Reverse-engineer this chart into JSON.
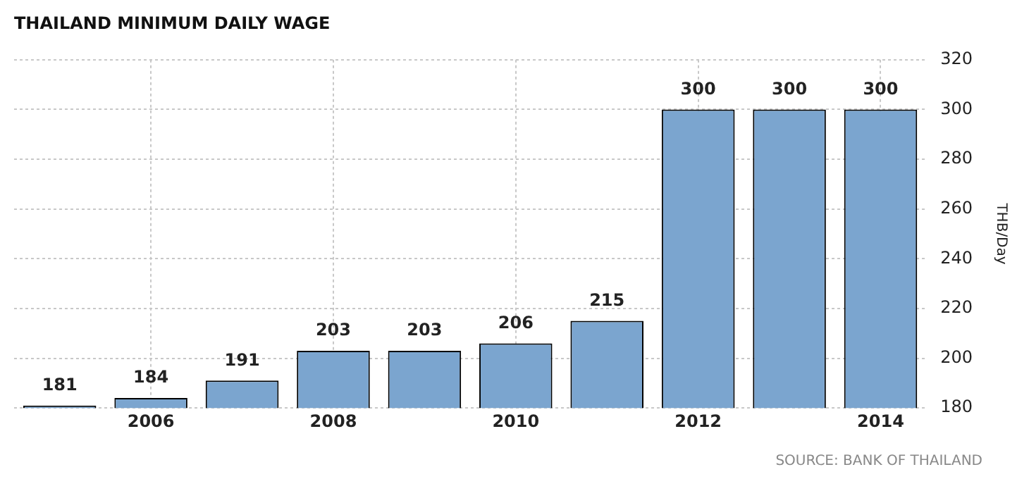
{
  "chart_data": {
    "type": "bar",
    "title": "THAILAND MINIMUM DAILY WAGE",
    "ylabel": "THB/Day",
    "categories": [
      null,
      "2006",
      null,
      "2008",
      null,
      "2010",
      null,
      "2012",
      null,
      "2014"
    ],
    "values": [
      181,
      184,
      191,
      203,
      203,
      206,
      215,
      300,
      300,
      300
    ],
    "color": "#7ba5cf",
    "ylim": [
      180,
      320
    ],
    "yticks": [
      180,
      200,
      220,
      240,
      260,
      280,
      300,
      320
    ],
    "grid": true,
    "data_labels": true,
    "legend": false,
    "annotations": [
      "SOURCE: BANK OF THAILAND"
    ]
  }
}
